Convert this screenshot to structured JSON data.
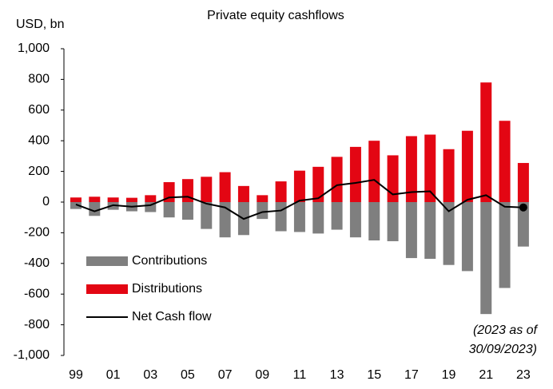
{
  "chart_data": {
    "type": "bar",
    "title": "Private equity cashflows",
    "y_label": "USD, bn",
    "categories": [
      "99",
      null,
      "01",
      null,
      "03",
      null,
      "05",
      null,
      "07",
      null,
      "09",
      null,
      "11",
      null,
      "13",
      null,
      "15",
      null,
      "17",
      null,
      "19",
      null,
      "21",
      null,
      "23"
    ],
    "series": [
      {
        "name": "Contributions",
        "type": "bar",
        "color": "#7f7f7f",
        "values": [
          -45,
          -90,
          -50,
          -60,
          -65,
          -100,
          -115,
          -175,
          -230,
          -215,
          -110,
          -190,
          -195,
          -205,
          -180,
          -230,
          -250,
          -255,
          -365,
          -370,
          -410,
          -450,
          -730,
          -560,
          -290
        ]
      },
      {
        "name": "Distributions",
        "type": "bar",
        "color": "#e30613",
        "values": [
          30,
          35,
          30,
          28,
          45,
          130,
          150,
          165,
          195,
          105,
          45,
          135,
          205,
          230,
          295,
          360,
          400,
          305,
          430,
          440,
          345,
          465,
          780,
          530,
          255
        ]
      },
      {
        "name": "Net Cash flow",
        "type": "line",
        "color": "#000000",
        "last_point_marker": true,
        "values": [
          -15,
          -60,
          -20,
          -30,
          -20,
          30,
          35,
          -10,
          -35,
          -110,
          -65,
          -55,
          10,
          25,
          110,
          125,
          145,
          50,
          65,
          70,
          -60,
          15,
          45,
          -30,
          -35
        ]
      }
    ],
    "ylim": [
      -1000,
      1000
    ],
    "yticks": [
      {
        "value": -1000,
        "label": "-1,000"
      },
      -800,
      -600,
      -400,
      -200,
      0,
      200,
      400,
      600,
      800,
      {
        "value": 1000,
        "label": "1,000"
      }
    ],
    "annotation": [
      "(2023 as of",
      "30/09/2023)"
    ],
    "legend": "lower left"
  }
}
